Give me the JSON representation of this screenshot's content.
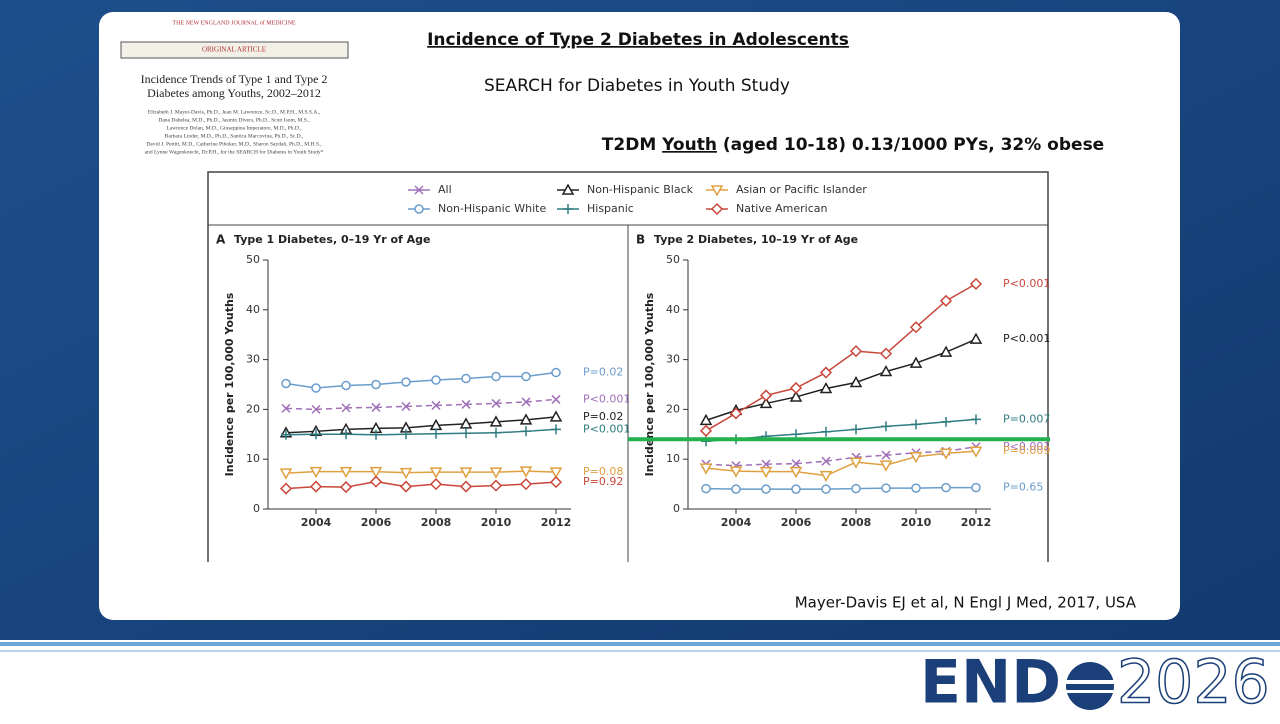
{
  "slide": {
    "title": "Incidence of Type 2 Diabetes in Adolescents",
    "subtitle": "SEARCH for Diabetes in Youth Study",
    "highlight": {
      "before": "T2DM ",
      "underlined": "Youth",
      "after": " (aged 10-18) 0.13/1000 PYs, 32% obese"
    },
    "citation": "Mayer-Davis EJ et al, N Engl J Med, 2017, USA",
    "logo": {
      "left": "END",
      "right": "2026"
    }
  },
  "paper": {
    "journal": "THE NEW ENGLAND JOURNAL of MEDICINE",
    "section": "ORIGINAL ARTICLE",
    "title": [
      "Incidence Trends of Type 1 and Type 2",
      "Diabetes among Youths, 2002–2012"
    ],
    "authors": [
      "Elizabeth J. Mayer-Davis, Ph.D., Jean M. Lawrence, Sc.D., M.P.H., M.S.S.A.,",
      "Dana Dabelea, M.D., Ph.D., Jasmin Divers, Ph.D., Scott Isom, M.S.,",
      "Lawrence Dolan, M.D., Giuseppina Imperatore, M.D., Ph.D.,",
      "Barbara Linder, M.D., Ph.D., Santica Marcovina, Ph.D., Sc.D.,",
      "David J. Pettitt, M.D., Catherine Pihoker, M.D., Sharon Saydah, Ph.D., M.H.S.,",
      "and Lynne Wagenknecht, Dr.P.H., for the SEARCH for Diabetes in Youth Study*"
    ]
  },
  "chart_data": [
    {
      "type": "line",
      "panel": "A",
      "title": "Type 1 Diabetes, 0–19 Yr of Age",
      "y_label": "Incidence per 100,000 Youths",
      "x": [
        2003,
        2004,
        2005,
        2006,
        2007,
        2008,
        2009,
        2010,
        2011,
        2012
      ],
      "xlim": [
        2002.4,
        2012.5
      ],
      "xticks": [
        2004,
        2006,
        2008,
        2010,
        2012
      ],
      "ylim": [
        0,
        50
      ],
      "yticks": [
        0,
        10,
        20,
        30,
        40,
        50
      ],
      "series": [
        {
          "name": "All",
          "color": "#a070b8",
          "marker": "x",
          "dashed": true,
          "p_label": "P<0.001",
          "values": [
            20.2,
            20,
            20.3,
            20.4,
            20.6,
            20.8,
            21,
            21.2,
            21.5,
            22
          ]
        },
        {
          "name": "Non-Hispanic White",
          "color": "#6a9ccc",
          "marker": "circle",
          "p_label": "P=0.02",
          "values": [
            25.2,
            24.3,
            24.8,
            25,
            25.5,
            25.9,
            26.2,
            26.6,
            26.6,
            27.4
          ]
        },
        {
          "name": "Non-Hispanic Black",
          "color": "#222222",
          "marker": "triangle",
          "p_label": "P=0.02",
          "values": [
            15.3,
            15.6,
            16,
            16.2,
            16.3,
            16.8,
            17.1,
            17.5,
            17.9,
            18.5
          ]
        },
        {
          "name": "Hispanic",
          "color": "#2e7c80",
          "marker": "plus",
          "p_label": "P<0.001",
          "values": [
            14.9,
            15,
            15,
            14.9,
            15,
            15.1,
            15.2,
            15.3,
            15.6,
            16
          ]
        },
        {
          "name": "Asian or Pacific Islander",
          "color": "#e0a040",
          "marker": "down",
          "p_label": "P=0.08",
          "values": [
            7.2,
            7.5,
            7.5,
            7.5,
            7.3,
            7.4,
            7.4,
            7.4,
            7.6,
            7.4
          ]
        },
        {
          "name": "Native American",
          "color": "#c8473a",
          "marker": "diamond",
          "p_label": "P=0.92",
          "values": [
            4.1,
            4.5,
            4.4,
            5.5,
            4.5,
            5,
            4.5,
            4.7,
            5,
            5.4
          ]
        }
      ]
    },
    {
      "type": "line",
      "panel": "B",
      "title": "Type 2 Diabetes, 10–19 Yr of Age",
      "y_label": "Incidence per 100,000 Youths",
      "x": [
        2003,
        2004,
        2005,
        2006,
        2007,
        2008,
        2009,
        2010,
        2011,
        2012
      ],
      "xlim": [
        2002.4,
        2012.5
      ],
      "xticks": [
        2004,
        2006,
        2008,
        2010,
        2012
      ],
      "ylim": [
        0,
        50
      ],
      "yticks": [
        0,
        10,
        20,
        30,
        40,
        50
      ],
      "reference_line": {
        "value": 14,
        "color": "#22b14c"
      },
      "series": [
        {
          "color": "#a070b8",
          "marker": "x",
          "dashed": true,
          "p_label": "P<0.001",
          "values": [
            9,
            8.7,
            9,
            9.1,
            9.6,
            10.4,
            10.8,
            11.3,
            11.6,
            12.5
          ]
        },
        {
          "color": "#6a9ccc",
          "marker": "circle",
          "p_label": "P=0.65",
          "values": [
            4.1,
            4,
            4,
            4,
            4,
            4.1,
            4.2,
            4.2,
            4.3,
            4.3
          ]
        },
        {
          "color": "#222222",
          "marker": "triangle",
          "p_label": "P<0.001",
          "values": [
            17.8,
            19.8,
            21.2,
            22.5,
            24.2,
            25.4,
            27.6,
            29.3,
            31.5,
            34.1
          ]
        },
        {
          "color": "#2e7c80",
          "marker": "plus",
          "p_label": "P=0.007",
          "values": [
            13.6,
            14,
            14.6,
            15,
            15.5,
            16,
            16.6,
            17,
            17.5,
            18
          ]
        },
        {
          "color": "#e0a040",
          "marker": "down",
          "p_label": "P=0.009",
          "values": [
            8.2,
            7.6,
            7.5,
            7.5,
            6.7,
            9.4,
            8.8,
            10.5,
            11.2,
            11.6
          ]
        },
        {
          "color": "#c8473a",
          "marker": "diamond",
          "p_label": "P<0.001",
          "values": [
            15.7,
            19.2,
            22.8,
            24.3,
            27.4,
            31.7,
            31.2,
            36.5,
            41.8,
            45.2
          ]
        }
      ]
    }
  ]
}
